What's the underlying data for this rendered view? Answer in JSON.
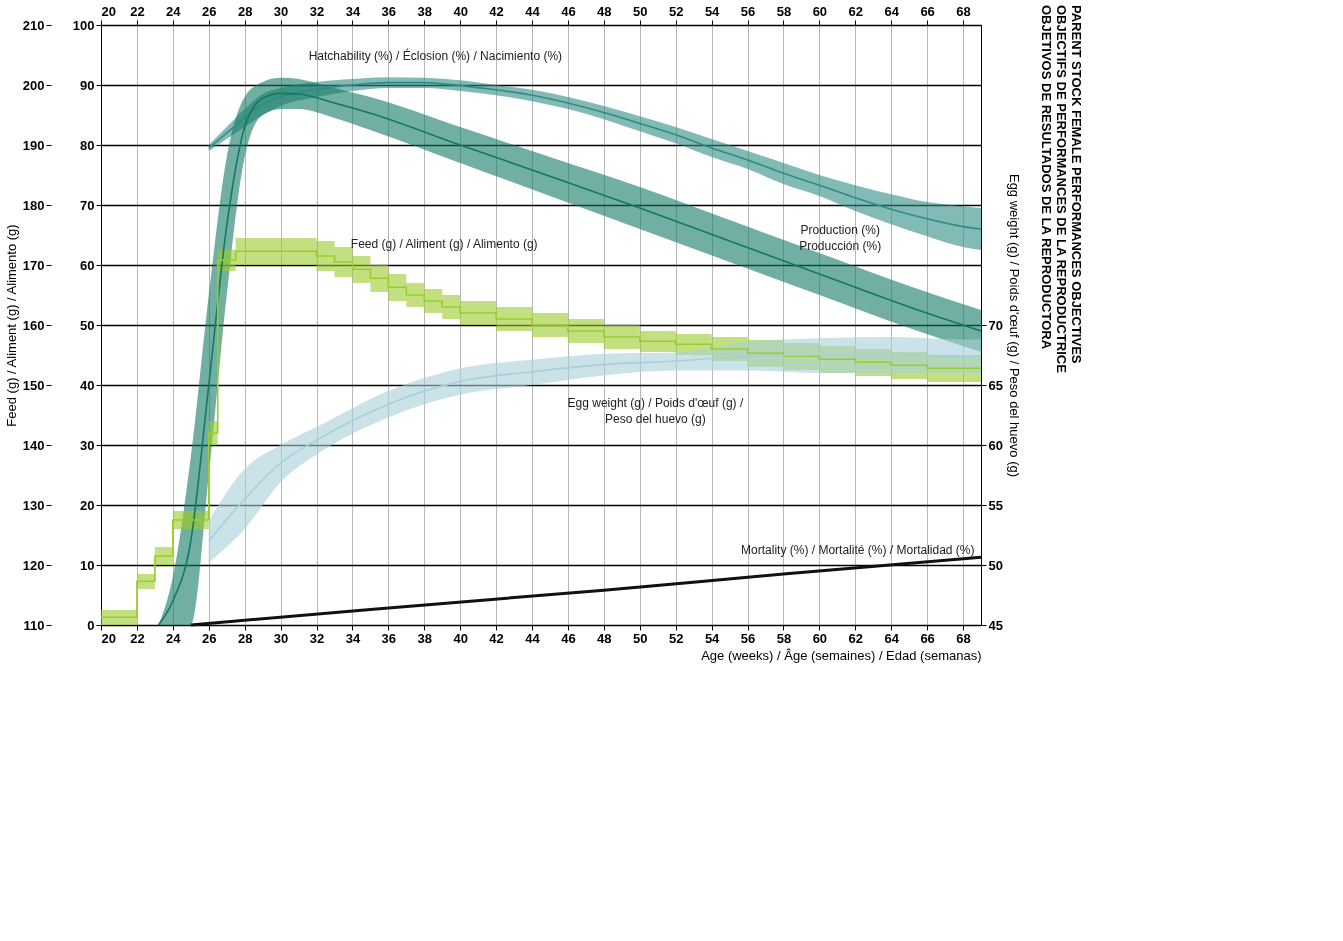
{
  "chart_data": {
    "type": "line",
    "title": "PARENT STOCK FEMALE PERFORMANCES OBJECTIVES\nOBJECTIFS DE PERFORMANCES DE LA REPRODUCTRICE\nOBJETIVOS DE RESULTADOS DE LA REPRODUCTORA",
    "xlabel": "Age (weeks) / Âge (semaines) / Edad (semanas)",
    "y3label": "Feed (g) / Aliment (g) / Alimento (g)",
    "y2label": "Egg weight (g) / Poids d'œuf (g) / Peso del huevo (g)",
    "xlim": [
      20,
      69
    ],
    "xticks": [
      20,
      22,
      24,
      26,
      28,
      30,
      32,
      34,
      36,
      38,
      40,
      42,
      44,
      46,
      48,
      50,
      52,
      54,
      56,
      58,
      60,
      62,
      64,
      66,
      68
    ],
    "x2lim": [
      20,
      69
    ],
    "x2ticks": [
      20,
      22,
      24,
      26,
      28,
      30,
      32,
      34,
      36,
      38,
      40,
      42,
      44,
      46,
      48,
      50,
      52,
      54,
      56,
      58,
      60,
      62,
      64,
      66,
      68
    ],
    "ylim": [
      0,
      100
    ],
    "yticks": [
      0,
      10,
      20,
      30,
      40,
      50,
      60,
      70,
      80,
      90,
      100
    ],
    "y3lim": [
      110,
      210
    ],
    "y3ticks": [
      110,
      120,
      130,
      140,
      150,
      160,
      170,
      180,
      190,
      200,
      210
    ],
    "y2lim": [
      45,
      95
    ],
    "y2ticks": [
      45,
      50,
      55,
      60,
      65,
      70
    ],
    "grid": true,
    "series": [
      {
        "name": "Hatchability (%) / Éclosion (%) / Nacimiento (%)",
        "color": "#2f8c84",
        "x": [
          26,
          27,
          28,
          29,
          30,
          32,
          34,
          36,
          38,
          40,
          42,
          44,
          46,
          48,
          50,
          52,
          54,
          56,
          58,
          60,
          62,
          64,
          66,
          68,
          69
        ],
        "values": [
          79.5,
          82,
          84.5,
          86.8,
          88,
          89.3,
          90,
          90.4,
          90.4,
          89.9,
          89.2,
          88.3,
          87,
          85.4,
          83.6,
          81.7,
          79.5,
          77.5,
          75.3,
          73.3,
          71.2,
          69.3,
          67.7,
          66.4,
          66
        ],
        "upper": [
          80,
          83,
          86,
          88.5,
          89.5,
          90.5,
          91,
          91.3,
          91.2,
          90.8,
          90,
          89.2,
          88,
          86.5,
          84.8,
          83,
          81,
          79,
          77,
          75,
          73.3,
          71.8,
          70.5,
          69.8,
          69.5
        ],
        "lower": [
          79,
          81,
          83,
          85,
          86.5,
          88,
          89,
          89.5,
          89.5,
          89,
          88.3,
          87.3,
          86,
          84.3,
          82.3,
          80.3,
          78,
          76,
          73.5,
          71.5,
          69,
          66.8,
          64.8,
          63,
          62.5
        ]
      },
      {
        "name": "Production (%)\nProducción (%)",
        "color": "#117a63",
        "x": [
          23.2,
          24,
          25,
          26,
          27,
          28,
          29,
          30,
          31,
          33,
          35,
          40,
          45,
          50,
          55,
          60,
          65,
          69
        ],
        "values": [
          0,
          4,
          14,
          40,
          66.5,
          83,
          87.8,
          88.6,
          88.5,
          87,
          85.3,
          80,
          74.8,
          69.5,
          64,
          58.5,
          53,
          49
        ],
        "upper": [
          0,
          8,
          28,
          55,
          78,
          88,
          90.5,
          91.2,
          91,
          89.5,
          88,
          83,
          78,
          73,
          67.5,
          62,
          56.5,
          52.5
        ],
        "lower": [
          0,
          0,
          0,
          25,
          55,
          78,
          85,
          86,
          86,
          84.5,
          82.5,
          77,
          71.5,
          66,
          60.5,
          55,
          49.5,
          45.5
        ]
      },
      {
        "name": "Feed (g) / Aliment (g) / Alimento (g)",
        "type": "step",
        "axis": "y3",
        "color": "#9bcb2c",
        "x": [
          20,
          22,
          23,
          24,
          26,
          26.5,
          27.5,
          32,
          33,
          34,
          35,
          36,
          37,
          38,
          39,
          40,
          42,
          44,
          46,
          48,
          50,
          52,
          54,
          56,
          58,
          60,
          62,
          64,
          66,
          69
        ],
        "values": [
          111.3,
          117.3,
          121.5,
          127.5,
          142,
          170.8,
          172.3,
          171.5,
          170.5,
          169.3,
          167.8,
          166.3,
          165,
          164,
          163,
          162,
          161,
          160,
          159,
          158,
          157.3,
          156.8,
          156,
          155.3,
          154.8,
          154.3,
          153.8,
          153.3,
          152.8,
          152.8
        ],
        "upper": [
          112.5,
          118.5,
          123,
          129,
          144,
          172.5,
          174.5,
          174,
          173,
          171.5,
          170,
          168.5,
          167,
          166,
          165,
          164,
          163,
          162,
          161,
          160,
          159,
          158.5,
          158,
          157.5,
          157,
          156.5,
          156,
          155.5,
          155,
          155
        ],
        "lower": [
          110,
          116,
          120,
          126,
          140,
          169,
          170,
          169,
          168,
          167,
          165.5,
          164,
          163,
          162,
          161,
          160,
          159,
          158,
          157,
          156,
          155.5,
          155,
          154,
          153,
          152.5,
          152,
          151.5,
          151,
          150.5,
          150.5
        ]
      },
      {
        "name": "Egg weight (g) / Poids d'œuf (g) /\nPeso del huevo (g)",
        "axis": "y2",
        "color": "#a9cfd8",
        "x": [
          26,
          28,
          30,
          32,
          36,
          40,
          44,
          48,
          52,
          56,
          60,
          64,
          68,
          69
        ],
        "values": [
          52,
          55.5,
          58.5,
          60.4,
          63.4,
          65.3,
          66.1,
          66.7,
          67,
          67.4,
          67.5,
          67.5,
          67.4,
          67.4
        ],
        "upper": [
          53.7,
          58,
          60,
          61.5,
          64.5,
          66.4,
          67.1,
          67.6,
          67.7,
          68.6,
          68.9,
          69,
          68.8,
          68.8
        ],
        "lower": [
          50.2,
          53,
          56.9,
          59.2,
          62.3,
          64.2,
          65,
          65.8,
          66.2,
          66.2,
          66,
          66,
          66,
          66
        ]
      },
      {
        "name": "Mortality (%) / Mortalité (%) / Mortalidad (%)",
        "color": "#111111",
        "x": [
          25,
          35,
          48,
          58,
          69
        ],
        "values": [
          0,
          2.6,
          5.8,
          8.5,
          11.3
        ]
      }
    ]
  }
}
